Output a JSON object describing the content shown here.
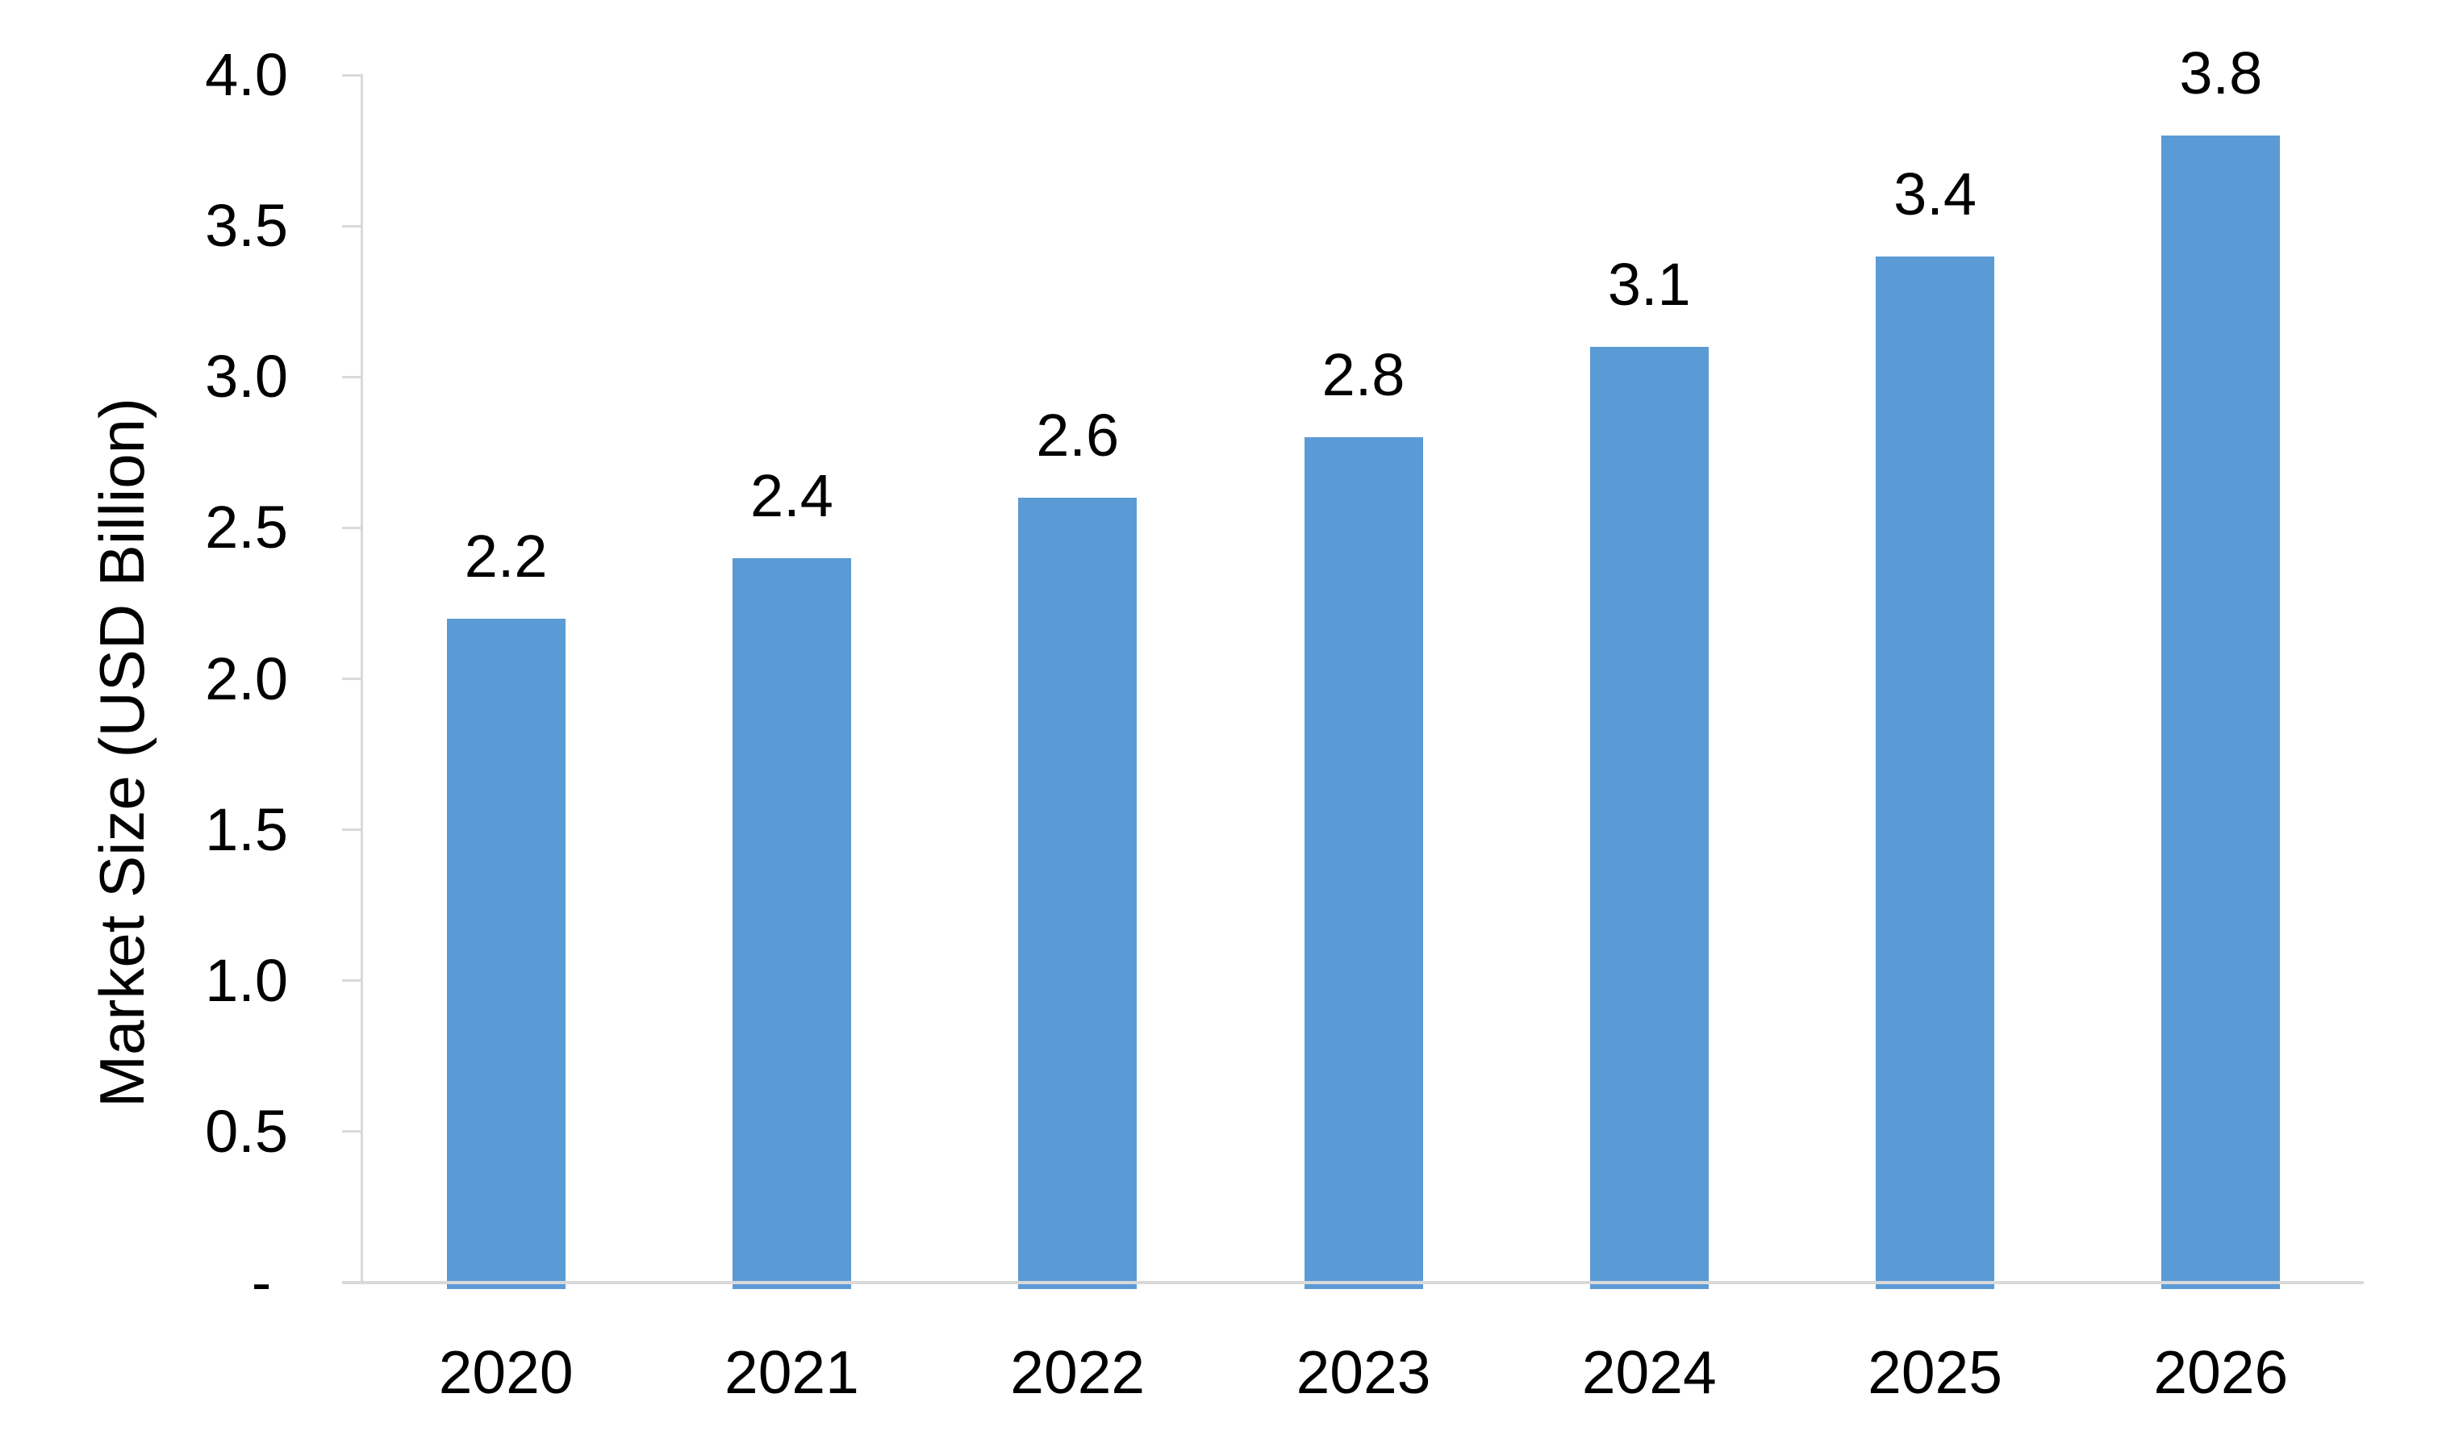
{
  "chart_data": {
    "type": "bar",
    "categories": [
      "2020",
      "2021",
      "2022",
      "2023",
      "2024",
      "2025",
      "2026"
    ],
    "values": [
      2.2,
      2.4,
      2.6,
      2.8,
      3.1,
      3.4,
      3.8
    ],
    "data_labels": [
      "2.2",
      "2.4",
      "2.6",
      "2.8",
      "3.1",
      "3.4",
      "3.8"
    ],
    "title": "",
    "xlabel": "",
    "ylabel": "Market Size (USD Billion)",
    "ylim": [
      0,
      4.0
    ],
    "ytick_interval": 0.5,
    "ytick_labels": [
      "-",
      "0.5",
      "1.0",
      "1.5",
      "2.0",
      "2.5",
      "3.0",
      "3.5",
      "4.0"
    ],
    "grid": "off",
    "legend": "none",
    "bar_color": "#5B9BD5",
    "axis_color": "#D9D9D9",
    "text_color": "#000000"
  }
}
